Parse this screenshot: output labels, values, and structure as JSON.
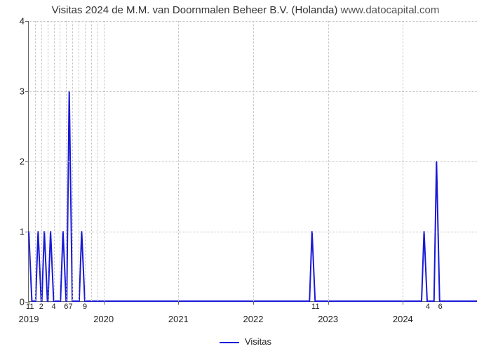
{
  "chart": {
    "type": "line",
    "title_main": "Visitas 2024 de M.M. van Doornmalen Beheer B.V. (Holanda) ",
    "title_site": "www.datocapital.com",
    "title_fontsize": 15,
    "background_color": "#ffffff",
    "grid_color": "#c0c0c0",
    "axis_color": "#666666",
    "line_color": "#1919d8",
    "line_width": 2,
    "ylim": [
      0,
      4
    ],
    "yticks": [
      0,
      1,
      2,
      3,
      4
    ],
    "xlim_months": [
      0,
      72
    ],
    "x_major_ticks": [
      {
        "month": 0,
        "label": "2019"
      },
      {
        "month": 12,
        "label": "2020"
      },
      {
        "month": 24,
        "label": "2021"
      },
      {
        "month": 36,
        "label": "2022"
      },
      {
        "month": 48,
        "label": "2023"
      },
      {
        "month": 60,
        "label": "2024"
      }
    ],
    "x_minor_ticks": [
      {
        "month": 0.2,
        "label": "11"
      },
      {
        "month": 2,
        "label": "2"
      },
      {
        "month": 4,
        "label": "4"
      },
      {
        "month": 6,
        "label": "6"
      },
      {
        "month": 6.7,
        "label": "7"
      },
      {
        "month": 9,
        "label": "9"
      },
      {
        "month": 46,
        "label": "11"
      },
      {
        "month": 64,
        "label": "4"
      },
      {
        "month": 66,
        "label": "6"
      }
    ],
    "series_step": [
      {
        "x": 0,
        "y": 1
      },
      {
        "x": 0.5,
        "y": 0
      },
      {
        "x": 1.5,
        "y": 1
      },
      {
        "x": 2.0,
        "y": 0
      },
      {
        "x": 2.5,
        "y": 1
      },
      {
        "x": 3.0,
        "y": 0
      },
      {
        "x": 3.5,
        "y": 1
      },
      {
        "x": 4.0,
        "y": 0
      },
      {
        "x": 5.5,
        "y": 1
      },
      {
        "x": 6.0,
        "y": 0
      },
      {
        "x": 6.5,
        "y": 3
      },
      {
        "x": 7.0,
        "y": 0
      },
      {
        "x": 8.5,
        "y": 1
      },
      {
        "x": 9.0,
        "y": 0
      },
      {
        "x": 45.5,
        "y": 1
      },
      {
        "x": 46.0,
        "y": 0
      },
      {
        "x": 63.5,
        "y": 1
      },
      {
        "x": 64.0,
        "y": 0
      },
      {
        "x": 65.5,
        "y": 2
      },
      {
        "x": 66.0,
        "y": 0
      }
    ],
    "legend_label": "Visitas",
    "label_fontsize": 13
  }
}
